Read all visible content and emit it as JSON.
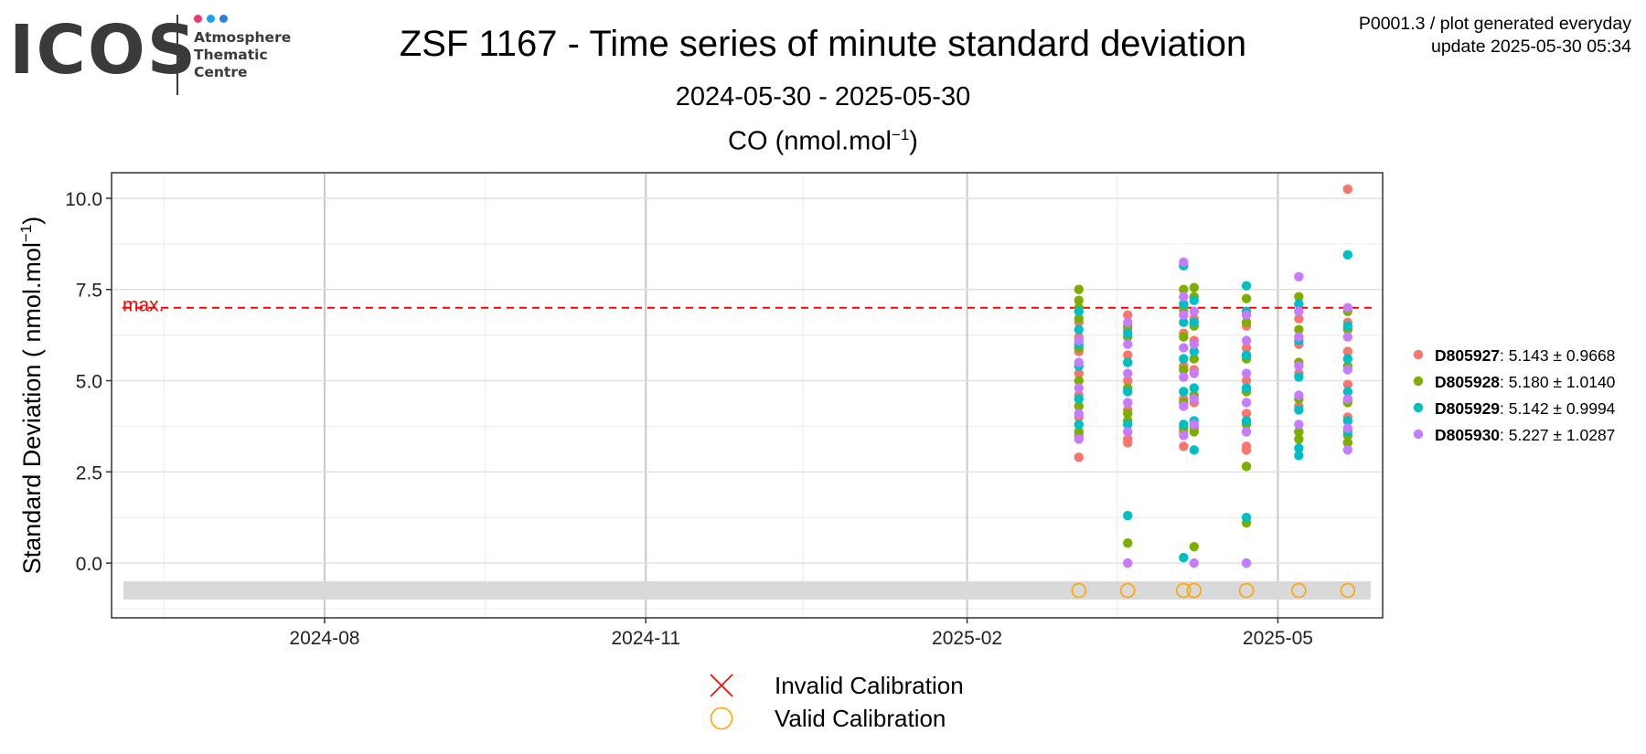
{
  "logo": {
    "text": "ICOS",
    "lines": [
      "Atmosphere",
      "Thematic",
      "Centre"
    ],
    "dot_colors": [
      "#e83a6e",
      "#1f9ef0",
      "#2f7de1"
    ]
  },
  "header": {
    "title": "ZSF 1167 - Time series of minute standard deviation",
    "date_range": "2024-05-30 - 2025-05-30",
    "gas_label": "CO (nmol.mol",
    "gas_label_sup": "−1",
    "gas_label_end": ")",
    "meta_line1": "P0001.3 / plot generated everyday",
    "meta_line2": "update  2025-05-30 05:34"
  },
  "chart_data": {
    "type": "scatter",
    "ylabel": "Standard Deviation ( nmol.mol",
    "ylabel_sup": "−1",
    "ylabel_end": ")",
    "xlim": [
      "2024-06-01",
      "2025-05-31"
    ],
    "ylim": [
      -1.5,
      10.7
    ],
    "x_ticks": [
      {
        "date": "2024-08-01",
        "label": "2024-08"
      },
      {
        "date": "2024-11-01",
        "label": "2024-11"
      },
      {
        "date": "2025-02-01",
        "label": "2025-02"
      },
      {
        "date": "2025-05-01",
        "label": "2025-05"
      }
    ],
    "y_ticks": [
      {
        "value": 0,
        "label": "0.0"
      },
      {
        "value": 2.5,
        "label": "2.5"
      },
      {
        "value": 5,
        "label": "5.0"
      },
      {
        "value": 7.5,
        "label": "7.5"
      },
      {
        "value": 10,
        "label": "10.0"
      }
    ],
    "threshold": {
      "value": 7.0,
      "label": "max.",
      "color": "#ff0000"
    },
    "calibration_band": {
      "y0": -1.0,
      "y1": -0.5,
      "color": "#d9d9d9"
    },
    "valid_calibrations": [
      "2025-03-05",
      "2025-03-19",
      "2025-04-04",
      "2025-04-07",
      "2025-04-22",
      "2025-05-07",
      "2025-05-21"
    ],
    "calibration_marker_y": -0.75,
    "series": [
      {
        "name": "D805927",
        "stats": ": 5.143 ± 0.9668",
        "color": "#f8766d",
        "points": [
          [
            "2025-03-05",
            2.9
          ],
          [
            "2025-03-05",
            3.5
          ],
          [
            "2025-03-05",
            4.0
          ],
          [
            "2025-03-05",
            4.6
          ],
          [
            "2025-03-05",
            5.2
          ],
          [
            "2025-03-05",
            5.8
          ],
          [
            "2025-03-05",
            6.2
          ],
          [
            "2025-03-05",
            6.6
          ],
          [
            "2025-03-19",
            3.3
          ],
          [
            "2025-03-19",
            3.4
          ],
          [
            "2025-03-19",
            4.2
          ],
          [
            "2025-03-19",
            5.0
          ],
          [
            "2025-03-19",
            5.7
          ],
          [
            "2025-03-19",
            6.4
          ],
          [
            "2025-03-19",
            6.8
          ],
          [
            "2025-04-04",
            3.2
          ],
          [
            "2025-04-04",
            3.6
          ],
          [
            "2025-04-04",
            4.5
          ],
          [
            "2025-04-04",
            5.4
          ],
          [
            "2025-04-04",
            6.3
          ],
          [
            "2025-04-04",
            6.9
          ],
          [
            "2025-04-07",
            3.7
          ],
          [
            "2025-04-07",
            4.4
          ],
          [
            "2025-04-07",
            5.3
          ],
          [
            "2025-04-07",
            6.1
          ],
          [
            "2025-04-07",
            6.7
          ],
          [
            "2025-04-22",
            3.1
          ],
          [
            "2025-04-22",
            3.2
          ],
          [
            "2025-04-22",
            4.1
          ],
          [
            "2025-04-22",
            5.0
          ],
          [
            "2025-04-22",
            5.9
          ],
          [
            "2025-04-22",
            6.5
          ],
          [
            "2025-05-07",
            3.6
          ],
          [
            "2025-05-07",
            4.3
          ],
          [
            "2025-05-07",
            5.2
          ],
          [
            "2025-05-07",
            6.0
          ],
          [
            "2025-05-07",
            6.7
          ],
          [
            "2025-05-07",
            6.9
          ],
          [
            "2025-05-21",
            3.3
          ],
          [
            "2025-05-21",
            4.0
          ],
          [
            "2025-05-21",
            4.9
          ],
          [
            "2025-05-21",
            5.8
          ],
          [
            "2025-05-21",
            6.6
          ],
          [
            "2025-05-21",
            10.25
          ]
        ]
      },
      {
        "name": "D805928",
        "stats": ": 5.180 ± 1.0140",
        "color": "#7cae00",
        "points": [
          [
            "2025-03-05",
            3.6
          ],
          [
            "2025-03-05",
            4.3
          ],
          [
            "2025-03-05",
            5.0
          ],
          [
            "2025-03-05",
            5.9
          ],
          [
            "2025-03-05",
            6.7
          ],
          [
            "2025-03-05",
            7.0
          ],
          [
            "2025-03-05",
            7.2
          ],
          [
            "2025-03-05",
            7.5
          ],
          [
            "2025-03-19",
            0.55
          ],
          [
            "2025-03-19",
            3.9
          ],
          [
            "2025-03-19",
            4.1
          ],
          [
            "2025-03-19",
            4.8
          ],
          [
            "2025-03-19",
            5.5
          ],
          [
            "2025-03-19",
            6.2
          ],
          [
            "2025-03-19",
            6.5
          ],
          [
            "2025-04-04",
            3.7
          ],
          [
            "2025-04-04",
            4.4
          ],
          [
            "2025-04-04",
            5.3
          ],
          [
            "2025-04-04",
            6.2
          ],
          [
            "2025-04-04",
            7.0
          ],
          [
            "2025-04-04",
            7.5
          ],
          [
            "2025-04-07",
            0.45
          ],
          [
            "2025-04-07",
            3.6
          ],
          [
            "2025-04-07",
            4.6
          ],
          [
            "2025-04-07",
            5.6
          ],
          [
            "2025-04-07",
            6.5
          ],
          [
            "2025-04-07",
            7.3
          ],
          [
            "2025-04-07",
            7.55
          ],
          [
            "2025-04-22",
            1.1
          ],
          [
            "2025-04-22",
            2.65
          ],
          [
            "2025-04-22",
            3.8
          ],
          [
            "2025-04-22",
            4.7
          ],
          [
            "2025-04-22",
            5.6
          ],
          [
            "2025-04-22",
            6.6
          ],
          [
            "2025-04-22",
            7.25
          ],
          [
            "2025-05-07",
            3.4
          ],
          [
            "2025-05-07",
            3.6
          ],
          [
            "2025-05-07",
            4.5
          ],
          [
            "2025-05-07",
            5.5
          ],
          [
            "2025-05-07",
            6.4
          ],
          [
            "2025-05-07",
            7.3
          ],
          [
            "2025-05-21",
            3.3
          ],
          [
            "2025-05-21",
            3.5
          ],
          [
            "2025-05-21",
            4.4
          ],
          [
            "2025-05-21",
            5.4
          ],
          [
            "2025-05-21",
            6.4
          ],
          [
            "2025-05-21",
            6.9
          ]
        ]
      },
      {
        "name": "D805929",
        "stats": ": 5.142 ± 0.9994",
        "color": "#00bfc4",
        "points": [
          [
            "2025-03-05",
            3.8
          ],
          [
            "2025-03-05",
            4.5
          ],
          [
            "2025-03-05",
            5.4
          ],
          [
            "2025-03-05",
            6.0
          ],
          [
            "2025-03-05",
            6.4
          ],
          [
            "2025-03-05",
            6.9
          ],
          [
            "2025-03-19",
            0.0
          ],
          [
            "2025-03-19",
            1.3
          ],
          [
            "2025-03-19",
            3.8
          ],
          [
            "2025-03-19",
            4.7
          ],
          [
            "2025-03-19",
            5.5
          ],
          [
            "2025-03-19",
            6.3
          ],
          [
            "2025-04-04",
            0.15
          ],
          [
            "2025-04-04",
            3.8
          ],
          [
            "2025-04-04",
            4.7
          ],
          [
            "2025-04-04",
            5.6
          ],
          [
            "2025-04-04",
            6.6
          ],
          [
            "2025-04-04",
            7.1
          ],
          [
            "2025-04-04",
            8.15
          ],
          [
            "2025-04-07",
            3.1
          ],
          [
            "2025-04-07",
            3.9
          ],
          [
            "2025-04-07",
            4.8
          ],
          [
            "2025-04-07",
            5.8
          ],
          [
            "2025-04-07",
            6.6
          ],
          [
            "2025-04-07",
            7.2
          ],
          [
            "2025-04-22",
            0.0
          ],
          [
            "2025-04-22",
            1.25
          ],
          [
            "2025-04-22",
            3.9
          ],
          [
            "2025-04-22",
            4.8
          ],
          [
            "2025-04-22",
            5.7
          ],
          [
            "2025-04-22",
            6.9
          ],
          [
            "2025-04-22",
            7.6
          ],
          [
            "2025-05-07",
            2.95
          ],
          [
            "2025-05-07",
            3.15
          ],
          [
            "2025-05-07",
            4.2
          ],
          [
            "2025-05-07",
            5.1
          ],
          [
            "2025-05-07",
            6.1
          ],
          [
            "2025-05-07",
            7.1
          ],
          [
            "2025-05-21",
            3.6
          ],
          [
            "2025-05-21",
            3.9
          ],
          [
            "2025-05-21",
            4.7
          ],
          [
            "2025-05-21",
            5.6
          ],
          [
            "2025-05-21",
            6.5
          ],
          [
            "2025-05-21",
            8.45
          ]
        ]
      },
      {
        "name": "D805930",
        "stats": ": 5.227 ± 1.0287",
        "color": "#c77cff",
        "points": [
          [
            "2025-03-05",
            3.4
          ],
          [
            "2025-03-05",
            4.1
          ],
          [
            "2025-03-05",
            4.8
          ],
          [
            "2025-03-05",
            5.5
          ],
          [
            "2025-03-05",
            6.1
          ],
          [
            "2025-03-19",
            0.0
          ],
          [
            "2025-03-19",
            3.6
          ],
          [
            "2025-03-19",
            4.4
          ],
          [
            "2025-03-19",
            5.2
          ],
          [
            "2025-03-19",
            6.0
          ],
          [
            "2025-03-19",
            6.6
          ],
          [
            "2025-04-04",
            3.5
          ],
          [
            "2025-04-04",
            4.3
          ],
          [
            "2025-04-04",
            5.1
          ],
          [
            "2025-04-04",
            5.9
          ],
          [
            "2025-04-04",
            6.8
          ],
          [
            "2025-04-04",
            7.3
          ],
          [
            "2025-04-04",
            8.25
          ],
          [
            "2025-04-07",
            0.0
          ],
          [
            "2025-04-07",
            3.8
          ],
          [
            "2025-04-07",
            4.5
          ],
          [
            "2025-04-07",
            5.2
          ],
          [
            "2025-04-07",
            6.0
          ],
          [
            "2025-04-07",
            6.9
          ],
          [
            "2025-04-22",
            0.0
          ],
          [
            "2025-04-22",
            3.6
          ],
          [
            "2025-04-22",
            4.4
          ],
          [
            "2025-04-22",
            5.2
          ],
          [
            "2025-04-22",
            6.1
          ],
          [
            "2025-04-22",
            6.8
          ],
          [
            "2025-05-07",
            3.8
          ],
          [
            "2025-05-07",
            4.6
          ],
          [
            "2025-05-07",
            5.4
          ],
          [
            "2025-05-07",
            6.2
          ],
          [
            "2025-05-07",
            6.9
          ],
          [
            "2025-05-07",
            7.85
          ],
          [
            "2025-05-21",
            3.1
          ],
          [
            "2025-05-21",
            3.7
          ],
          [
            "2025-05-21",
            4.5
          ],
          [
            "2025-05-21",
            5.3
          ],
          [
            "2025-05-21",
            6.2
          ],
          [
            "2025-05-21",
            7.0
          ]
        ]
      }
    ],
    "calibration_legend": [
      {
        "label": "Invalid Calibration",
        "symbol": "cross",
        "color": "#ff0000"
      },
      {
        "label": "Valid Calibration",
        "symbol": "circle",
        "color": "#ffa500"
      }
    ],
    "grid": true
  }
}
